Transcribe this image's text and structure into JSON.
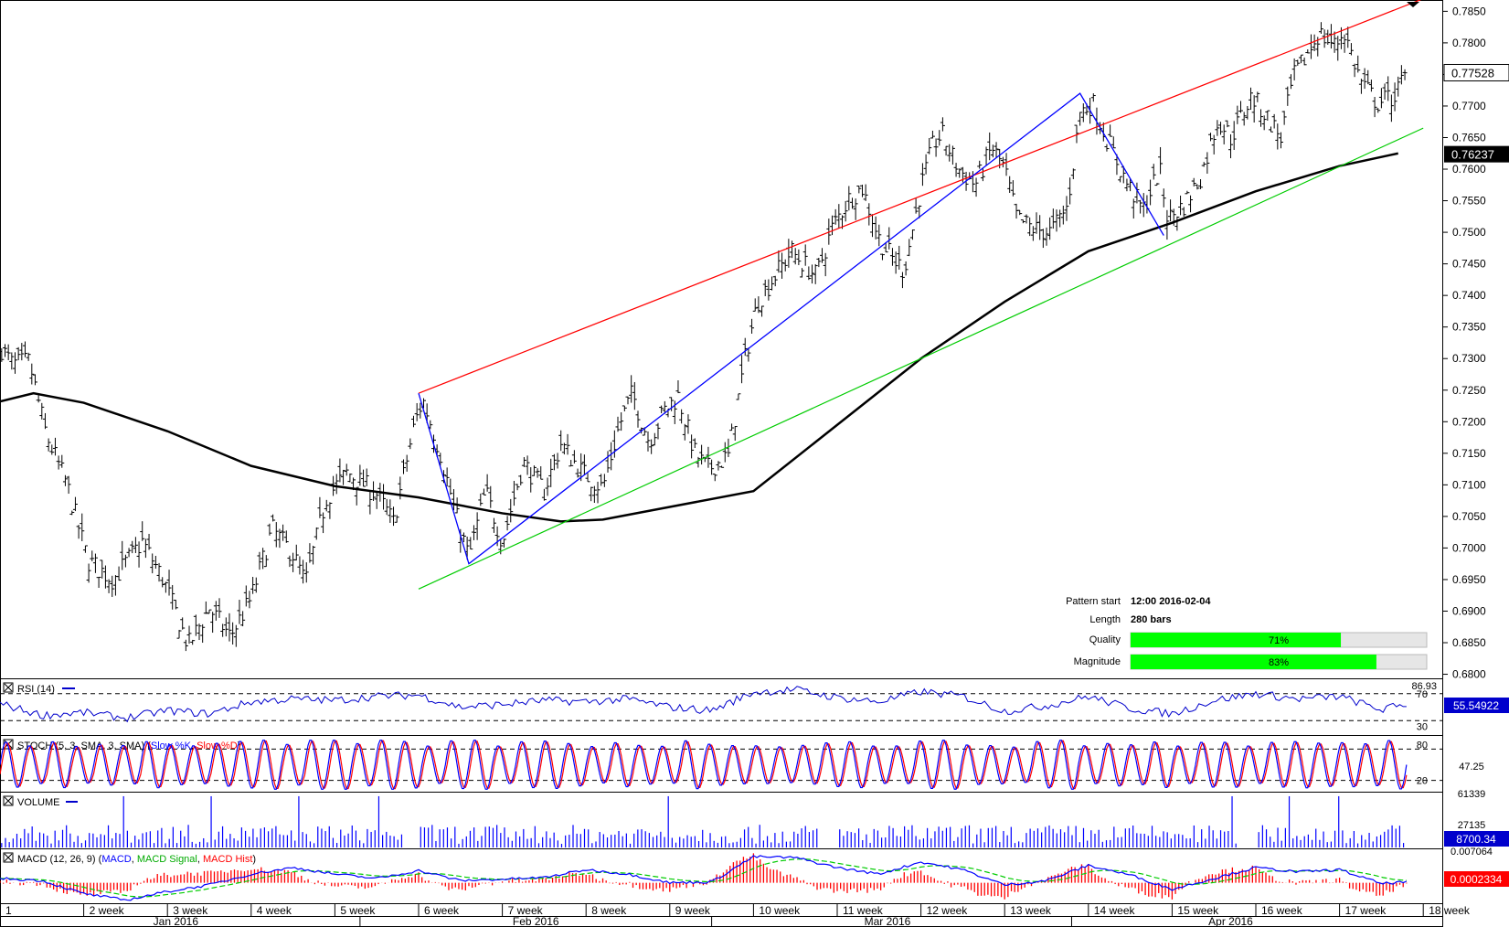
{
  "chart_data": {
    "type": "line",
    "main": {
      "price_ticks": [
        "0.7850",
        "0.7800",
        "0.7750",
        "0.7700",
        "0.7650",
        "0.7600",
        "0.7550",
        "0.7500",
        "0.7450",
        "0.7400",
        "0.7350",
        "0.7300",
        "0.7250",
        "0.7200",
        "0.7150",
        "0.7100",
        "0.7050",
        "0.7000",
        "0.6950",
        "0.6900",
        "0.6850",
        "0.6800"
      ],
      "current_price_label": "0.77528",
      "ma_price_label": "0.76237",
      "ylim": [
        0.6795,
        0.7865
      ],
      "pattern": {
        "start_label": "Pattern start",
        "start_value": "12:00 2016-02-04",
        "length_label": "Length",
        "length_value": "280 bars",
        "quality_label": "Quality",
        "quality_value": "71%",
        "quality_fraction": 0.71,
        "magnitude_label": "Magnitude",
        "magnitude_value": "83%",
        "magnitude_fraction": 0.83
      },
      "resistance_line": [
        [
          5.0,
          0.7245
        ],
        [
          17.0,
          0.787
        ]
      ],
      "support_line": [
        [
          5.0,
          0.6935
        ],
        [
          17.0,
          0.7665
        ]
      ],
      "zigzag": [
        [
          5.0,
          0.7245
        ],
        [
          5.6,
          0.6975
        ],
        [
          12.9,
          0.772
        ],
        [
          13.9,
          0.7495
        ]
      ],
      "moving_average": [
        [
          0,
          0.7232
        ],
        [
          0.4,
          0.7245
        ],
        [
          1,
          0.723
        ],
        [
          2,
          0.7185
        ],
        [
          3,
          0.713
        ],
        [
          4,
          0.7098
        ],
        [
          5,
          0.708
        ],
        [
          6,
          0.7055
        ],
        [
          6.7,
          0.7042
        ],
        [
          7.2,
          0.7045
        ],
        [
          8,
          0.7065
        ],
        [
          9,
          0.709
        ],
        [
          10,
          0.7195
        ],
        [
          11,
          0.73
        ],
        [
          12,
          0.739
        ],
        [
          13,
          0.747
        ],
        [
          14,
          0.7515
        ],
        [
          15,
          0.7565
        ],
        [
          16,
          0.7605
        ],
        [
          16.7,
          0.7625
        ]
      ],
      "price_path": [
        [
          0,
          0.732
        ],
        [
          0.15,
          0.729
        ],
        [
          0.35,
          0.7295
        ],
        [
          0.55,
          0.718
        ],
        [
          0.8,
          0.71
        ],
        [
          1.05,
          0.698
        ],
        [
          1.35,
          0.695
        ],
        [
          1.7,
          0.701
        ],
        [
          1.95,
          0.695
        ],
        [
          2.25,
          0.6845
        ],
        [
          2.5,
          0.6905
        ],
        [
          2.75,
          0.686
        ],
        [
          3.0,
          0.692
        ],
        [
          3.25,
          0.703
        ],
        [
          3.5,
          0.699
        ],
        [
          3.65,
          0.6945
        ],
        [
          3.9,
          0.708
        ],
        [
          4.15,
          0.712
        ],
        [
          4.5,
          0.7085
        ],
        [
          4.7,
          0.704
        ],
        [
          4.95,
          0.7195
        ],
        [
          5.05,
          0.7235
        ],
        [
          5.25,
          0.7155
        ],
        [
          5.45,
          0.705
        ],
        [
          5.6,
          0.6985
        ],
        [
          5.8,
          0.709
        ],
        [
          6.0,
          0.701
        ],
        [
          6.25,
          0.7135
        ],
        [
          6.5,
          0.709
        ],
        [
          6.7,
          0.7165
        ],
        [
          6.95,
          0.712
        ],
        [
          7.2,
          0.7095
        ],
        [
          7.4,
          0.7195
        ],
        [
          7.55,
          0.7245
        ],
        [
          7.75,
          0.717
        ],
        [
          7.95,
          0.722
        ],
        [
          8.1,
          0.724
        ],
        [
          8.3,
          0.715
        ],
        [
          8.45,
          0.7125
        ],
        [
          8.7,
          0.7145
        ],
        [
          8.9,
          0.73
        ],
        [
          9.05,
          0.739
        ],
        [
          9.3,
          0.744
        ],
        [
          9.45,
          0.747
        ],
        [
          9.75,
          0.743
        ],
        [
          9.95,
          0.751
        ],
        [
          10.15,
          0.7555
        ],
        [
          10.3,
          0.757
        ],
        [
          10.5,
          0.749
        ],
        [
          10.65,
          0.746
        ],
        [
          10.8,
          0.744
        ],
        [
          11.0,
          0.757
        ],
        [
          11.15,
          0.764
        ],
        [
          11.25,
          0.7655
        ],
        [
          11.45,
          0.76
        ],
        [
          11.65,
          0.7575
        ],
        [
          11.85,
          0.7635
        ],
        [
          12.0,
          0.76
        ],
        [
          12.15,
          0.752
        ],
        [
          12.35,
          0.7505
        ],
        [
          12.55,
          0.75
        ],
        [
          12.75,
          0.754
        ],
        [
          12.9,
          0.769
        ],
        [
          13.05,
          0.7705
        ],
        [
          13.2,
          0.7655
        ],
        [
          13.45,
          0.758
        ],
        [
          13.65,
          0.7535
        ],
        [
          13.85,
          0.76
        ],
        [
          13.95,
          0.752
        ],
        [
          14.15,
          0.7545
        ],
        [
          14.35,
          0.759
        ],
        [
          14.55,
          0.768
        ],
        [
          14.7,
          0.765
        ],
        [
          14.95,
          0.7715
        ],
        [
          15.15,
          0.768
        ],
        [
          15.3,
          0.765
        ],
        [
          15.45,
          0.7745
        ],
        [
          15.65,
          0.779
        ],
        [
          15.75,
          0.7815
        ],
        [
          15.95,
          0.7795
        ],
        [
          16.05,
          0.782
        ],
        [
          16.25,
          0.774
        ],
        [
          16.45,
          0.7705
        ],
        [
          16.65,
          0.7715
        ],
        [
          16.8,
          0.775
        ]
      ]
    },
    "x_axis": {
      "week_labels": [
        "1",
        "2 week",
        "3 week",
        "4 week",
        "5 week",
        "6 week",
        "7 week",
        "8 week",
        "9 week",
        "10 week",
        "11 week",
        "12 week",
        "13 week",
        "14 week",
        "15 week",
        "16 week",
        "17 week",
        "18 week"
      ],
      "month_labels": [
        "Jan 2016",
        "Feb 2016",
        "Mar 2016",
        "Apr 2016"
      ],
      "month_centers": [
        2.1,
        6.4,
        10.6,
        14.7
      ],
      "month_separators": [
        4.3,
        8.5,
        12.8
      ]
    },
    "rsi": {
      "title": "RSI (14)",
      "ticks": [
        "86.93",
        "70",
        "30"
      ],
      "levels": [
        70,
        30
      ],
      "ylim": [
        10,
        90
      ],
      "value_label": "55.54922",
      "path": [
        [
          0,
          55
        ],
        [
          0.5,
          38
        ],
        [
          1.0,
          42
        ],
        [
          1.5,
          34
        ],
        [
          2.0,
          45
        ],
        [
          2.5,
          40
        ],
        [
          3.0,
          58
        ],
        [
          3.5,
          62
        ],
        [
          4.0,
          60
        ],
        [
          4.5,
          66
        ],
        [
          5.0,
          68
        ],
        [
          5.5,
          50
        ],
        [
          6.0,
          54
        ],
        [
          6.5,
          60
        ],
        [
          7.0,
          58
        ],
        [
          7.5,
          62
        ],
        [
          8.0,
          50
        ],
        [
          8.5,
          45
        ],
        [
          9.0,
          72
        ],
        [
          9.5,
          76
        ],
        [
          10.0,
          64
        ],
        [
          10.5,
          58
        ],
        [
          11.0,
          73
        ],
        [
          11.5,
          66
        ],
        [
          12.0,
          44
        ],
        [
          12.5,
          52
        ],
        [
          13.0,
          66
        ],
        [
          13.5,
          48
        ],
        [
          14.0,
          40
        ],
        [
          14.5,
          60
        ],
        [
          15.0,
          70
        ],
        [
          15.5,
          62
        ],
        [
          16.0,
          66
        ],
        [
          16.5,
          46
        ],
        [
          16.8,
          55
        ]
      ]
    },
    "stoch": {
      "title": "STOCH (5, 3, SMA, 3, SMA)",
      "k_label": "Slow %K",
      "d_label": "Slow %D",
      "ticks": [
        "80",
        "47.25",
        "20"
      ],
      "levels": [
        80,
        20
      ],
      "ylim": [
        0,
        100
      ],
      "cycles": 60
    },
    "volume": {
      "title": "VOLUME",
      "ticks": [
        "61339",
        "27135"
      ],
      "value_label": "8700.34",
      "ylim": [
        0,
        61339
      ],
      "typical_peak": 27135,
      "bars": 180
    },
    "macd": {
      "title": "MACD (12, 26, 9)",
      "macd_label": "MACD",
      "signal_label": "MACD Signal",
      "hist_label": "MACD Hist",
      "top_tick": "0.007064",
      "value_label": "0.0002334",
      "ylim": [
        -0.0045,
        0.0075
      ],
      "path": [
        [
          0,
          0.001
        ],
        [
          0.5,
          0.0005
        ],
        [
          1.0,
          -0.0025
        ],
        [
          1.5,
          -0.004
        ],
        [
          2.0,
          -0.002
        ],
        [
          2.5,
          -0.0005
        ],
        [
          3.0,
          0.002
        ],
        [
          3.5,
          0.0035
        ],
        [
          4.0,
          0.002
        ],
        [
          4.5,
          0.001
        ],
        [
          5.0,
          0.0028
        ],
        [
          5.5,
          0.0005
        ],
        [
          6.0,
          0.0008
        ],
        [
          6.5,
          0.0012
        ],
        [
          7.0,
          0.003
        ],
        [
          7.5,
          0.002
        ],
        [
          8.0,
          0.0
        ],
        [
          8.5,
          0.0002
        ],
        [
          9.0,
          0.006
        ],
        [
          9.5,
          0.0058
        ],
        [
          10.0,
          0.0035
        ],
        [
          10.5,
          0.002
        ],
        [
          11.0,
          0.0048
        ],
        [
          11.5,
          0.003
        ],
        [
          12.0,
          -0.0005
        ],
        [
          12.5,
          0.0005
        ],
        [
          13.0,
          0.004
        ],
        [
          13.5,
          0.0018
        ],
        [
          14.0,
          -0.0015
        ],
        [
          14.5,
          0.001
        ],
        [
          15.0,
          0.0035
        ],
        [
          15.5,
          0.0025
        ],
        [
          16.0,
          0.003
        ],
        [
          16.5,
          -0.0002
        ],
        [
          16.8,
          0.0002
        ]
      ]
    },
    "colors": {
      "resistance": "#ff0000",
      "support": "#00cc00",
      "zigzag": "#0000ff",
      "ma": "#000000",
      "bars": "#000000",
      "rsi": "#0000cc",
      "stoch_k": "#0000ff",
      "stoch_d": "#ff0000",
      "volume": "#0000ff",
      "macd": "#0000ff",
      "signal": "#00cc00",
      "hist": "#ff0000",
      "quality_fill": "#00ff00",
      "quality_track": "#e6e6e6",
      "current_box_fill": "#ffffff",
      "ma_box_fill": "#000000",
      "rsi_box_fill": "#0000cc",
      "volume_box_fill": "#0000cc",
      "macd_box_fill": "#ff0000"
    }
  }
}
